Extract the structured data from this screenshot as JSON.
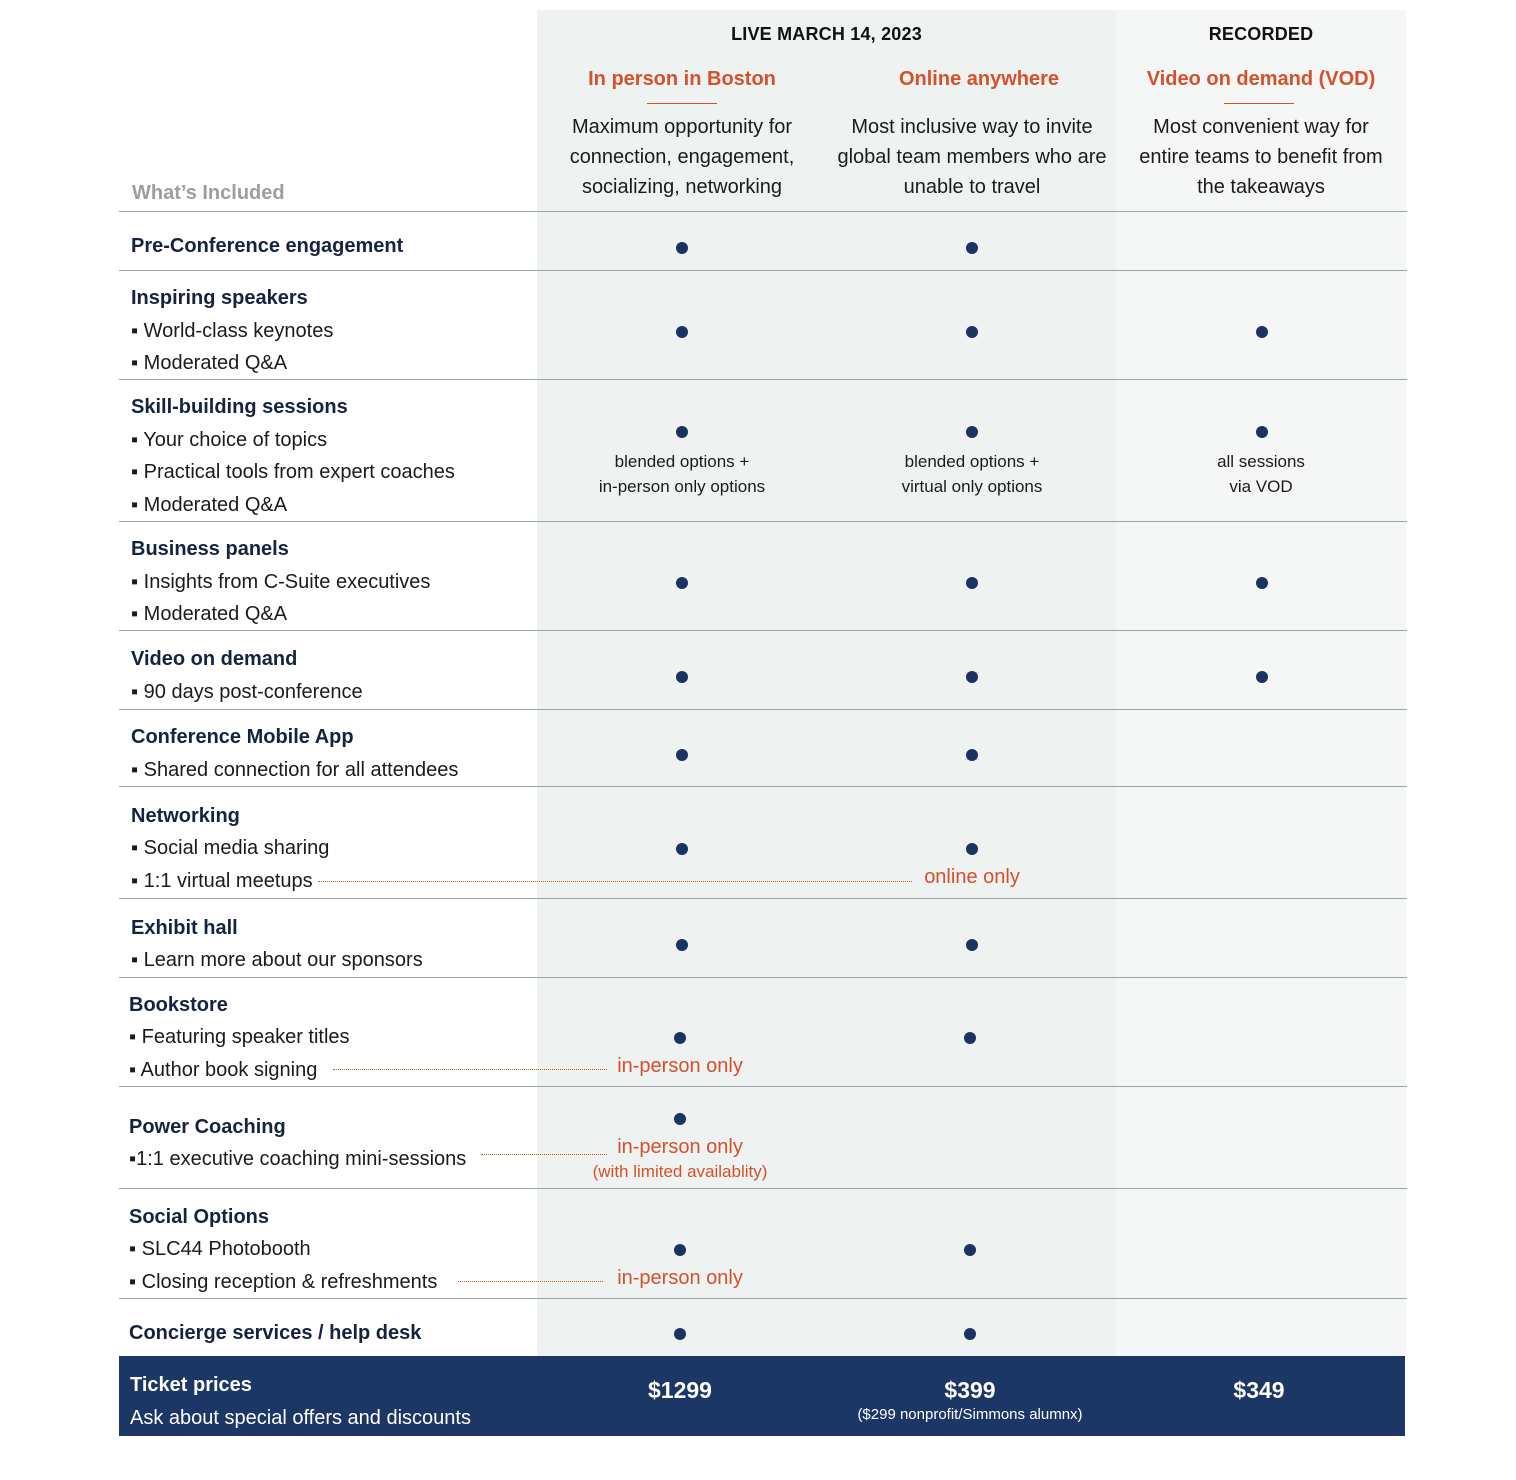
{
  "header": {
    "live_label": "LIVE MARCH 14, 2023",
    "recorded_label": "RECORDED",
    "included_label": "What’s Included",
    "options": [
      {
        "name": "In person in Boston",
        "desc": [
          "Maximum opportunity for",
          "connection, engagement,",
          "socializing, networking"
        ]
      },
      {
        "name": "Online anywhere",
        "desc": [
          "Most inclusive way to invite",
          "global team members who are",
          "unable to travel"
        ]
      },
      {
        "name": "Video on demand (VOD)",
        "desc": [
          "Most convenient way for",
          "entire teams to benefit from",
          "the takeaways"
        ]
      }
    ]
  },
  "rows": [
    {
      "title": "Pre-Conference engagement"
    },
    {
      "title": "Inspiring speakers",
      "items": [
        "World-class keynotes",
        "Moderated Q&A"
      ]
    },
    {
      "title": "Skill-building sessions",
      "items": [
        "Your choice of topics",
        "Practical tools from expert coaches",
        "Moderated Q&A"
      ],
      "notes": [
        [
          "blended options +",
          "in-person only options"
        ],
        [
          "blended options +",
          "virtual only options"
        ],
        [
          "all sessions",
          "via VOD"
        ]
      ]
    },
    {
      "title": "Business panels",
      "items": [
        "Insights from C-Suite executives",
        "Moderated Q&A"
      ]
    },
    {
      "title": "Video on demand",
      "items": [
        "90 days post-conference"
      ]
    },
    {
      "title": "Conference Mobile App",
      "items": [
        "Shared connection for all attendees"
      ]
    },
    {
      "title": "Networking",
      "items": [
        "Social media sharing",
        "1:1 virtual meetups"
      ],
      "online_note": "online only"
    },
    {
      "title": "Exhibit hall",
      "items": [
        "Learn more about our sponsors"
      ]
    },
    {
      "title": "Bookstore",
      "items": [
        "Featuring speaker titles",
        "Author book signing"
      ],
      "inperson_note": "in-person only"
    },
    {
      "title": "Power Coaching",
      "items": [
        "1:1 executive coaching mini-sessions"
      ],
      "inperson_note": "in-person only",
      "inperson_sub": "(with limited availablity)"
    },
    {
      "title": "Social Options",
      "items": [
        "SLC44 Photobooth",
        "Closing reception & refreshments"
      ],
      "inperson_note": "in-person only"
    },
    {
      "title": "Concierge services / help desk"
    }
  ],
  "bullet": "▪",
  "footer": {
    "title": "Ticket prices",
    "subtitle": "Ask about special offers and discounts",
    "prices": [
      "$1299",
      "$399",
      "$349"
    ],
    "price_note": "($299 nonprofit/Simmons alumnx)"
  },
  "colors": {
    "accent": "#d4512b",
    "navy": "#1c3766",
    "dot": "#1b3262",
    "live_bg": "#eef3f2",
    "recorded_bg": "#f5f7f7"
  }
}
